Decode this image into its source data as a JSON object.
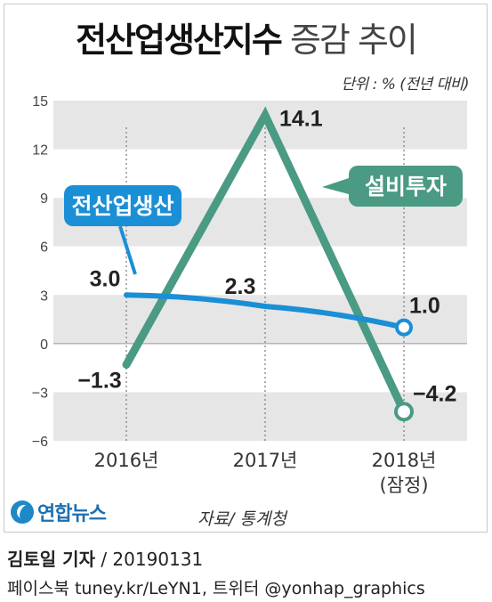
{
  "title": {
    "bold": "전산업생산지수",
    "light": "증감 추이"
  },
  "unit_note": "단위 : % (전년 대비)",
  "source": "자료/ 통계청",
  "logo_text": "연합뉴스",
  "byline": {
    "name": "김토일 기자",
    "date": "/ 20190131"
  },
  "social": "페이스북 tuney.kr/LeYN1, 트위터 @yonhap_graphics",
  "chart_data": {
    "type": "line",
    "categories": [
      "2016년",
      "2017년",
      "2018년"
    ],
    "category_sublabels": [
      "",
      "",
      "(잠정)"
    ],
    "ylim": [
      -6,
      15
    ],
    "yticks": [
      15,
      12,
      9,
      6,
      3,
      0,
      -3,
      -6
    ],
    "ytick_labels": [
      "15",
      "12",
      "9",
      "6",
      "3",
      "0",
      "−3",
      "−6"
    ],
    "grid": "alternating horizontal bands",
    "series": [
      {
        "name": "전산업생산",
        "values": [
          3.0,
          2.3,
          1.0
        ],
        "labels": [
          "3.0",
          "2.3",
          "1.0"
        ],
        "color": "#1a8fd6"
      },
      {
        "name": "설비투자",
        "values": [
          -1.3,
          14.1,
          -4.2
        ],
        "labels": [
          "−1.3",
          "14.1",
          "−4.2"
        ],
        "color": "#4a9a84"
      }
    ]
  }
}
